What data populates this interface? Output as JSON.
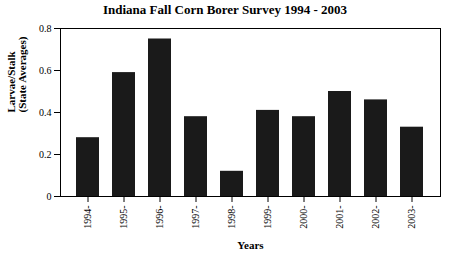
{
  "chart_data": {
    "type": "bar",
    "title": "Indiana Fall Corn Borer Survey 1994 - 2003",
    "xlabel": "Years",
    "ylabel": "Larvae/Stalk\n(State Averages)",
    "categories": [
      "1994-",
      "1995-",
      "1996-",
      "1997-",
      "1998-",
      "1999-",
      "2000-",
      "2001-",
      "2002-",
      "2003-"
    ],
    "values": [
      0.28,
      0.59,
      0.75,
      0.38,
      0.12,
      0.41,
      0.38,
      0.5,
      0.46,
      0.33
    ],
    "color": "#1a1a1a",
    "ylim": [
      0,
      0.8
    ],
    "yticks": [
      0,
      0.2,
      0.4,
      0.6,
      0.8
    ]
  }
}
